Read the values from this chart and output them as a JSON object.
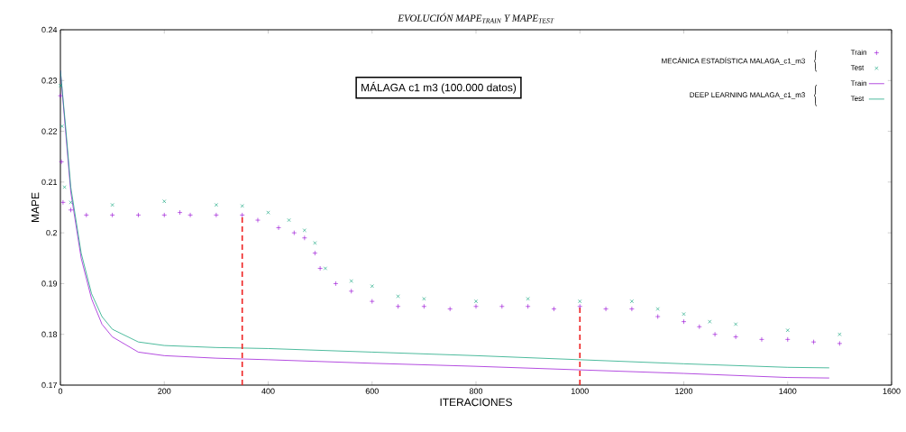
{
  "chart_data": {
    "type": "line",
    "title": "EVOLUCIÓN MAPE$_{TRAIN}$ Y MAPE$_{TEST}$",
    "xlabel": "ITERACIONES",
    "ylabel": "MAPE",
    "xlim": [
      0,
      1600
    ],
    "xticks": [
      0,
      200,
      400,
      600,
      800,
      1000,
      1200,
      1400,
      1600
    ],
    "ylim": [
      0.17,
      0.24
    ],
    "yticks": [
      0.17,
      0.18,
      0.19,
      0.2,
      0.21,
      0.22,
      0.23,
      0.24
    ],
    "grid": false,
    "legend": "top right",
    "annotations": [
      "MÁLAGA c1 m3 (100.000 datos)",
      "MECÁNICA ESTADÍSTICA MALAGA_c1_m3",
      "DEEP LEARNING MALAGA_c1_m3"
    ],
    "series": [
      {
        "name": "Train",
        "type": "scatter",
        "marker": "plus",
        "color": "#9400d3",
        "x": [
          0,
          2,
          5,
          20,
          50,
          100,
          150,
          200,
          230,
          250,
          300,
          350,
          380,
          420,
          450,
          470,
          490,
          500,
          530,
          560,
          600,
          650,
          700,
          750,
          800,
          850,
          900,
          950,
          1000,
          1050,
          1100,
          1150,
          1200,
          1230,
          1260,
          1300,
          1350,
          1400,
          1450,
          1500
        ],
        "values": [
          0.227,
          0.214,
          0.206,
          0.2045,
          0.2035,
          0.2035,
          0.2035,
          0.2035,
          0.204,
          0.2035,
          0.2035,
          0.2035,
          0.2025,
          0.201,
          0.2,
          0.199,
          0.196,
          0.193,
          0.19,
          0.1885,
          0.1865,
          0.1855,
          0.1855,
          0.185,
          0.1855,
          0.1855,
          0.1855,
          0.185,
          0.1855,
          0.185,
          0.185,
          0.1835,
          0.1825,
          0.1815,
          0.18,
          0.1795,
          0.179,
          0.179,
          0.1785,
          0.1782
        ]
      },
      {
        "name": "Test",
        "type": "scatter",
        "marker": "cross",
        "color": "#009e73",
        "x": [
          0,
          3,
          8,
          20,
          100,
          200,
          300,
          350,
          400,
          440,
          470,
          490,
          510,
          560,
          600,
          650,
          700,
          800,
          900,
          1000,
          1100,
          1150,
          1200,
          1250,
          1300,
          1400,
          1500
        ],
        "values": [
          0.229,
          0.221,
          0.209,
          0.206,
          0.2055,
          0.2062,
          0.2055,
          0.2053,
          0.204,
          0.2025,
          0.2005,
          0.198,
          0.193,
          0.1905,
          0.1895,
          0.1875,
          0.187,
          0.1865,
          0.187,
          0.1865,
          0.1865,
          0.185,
          0.184,
          0.1825,
          0.182,
          0.1808,
          0.18
        ]
      },
      {
        "name": "Train",
        "marker": "none",
        "color": "#9400d3",
        "x": [
          0,
          10,
          20,
          40,
          60,
          80,
          100,
          150,
          200,
          300,
          400,
          600,
          800,
          1000,
          1200,
          1400,
          1480
        ],
        "values": [
          0.232,
          0.22,
          0.208,
          0.195,
          0.187,
          0.182,
          0.1795,
          0.1765,
          0.1758,
          0.1753,
          0.175,
          0.1743,
          0.1737,
          0.173,
          0.1723,
          0.1715,
          0.1714
        ]
      },
      {
        "name": "Test",
        "marker": "none",
        "color": "#009e73",
        "x": [
          0,
          10,
          20,
          40,
          60,
          80,
          100,
          150,
          200,
          300,
          400,
          600,
          800,
          1000,
          1200,
          1400,
          1480
        ],
        "values": [
          0.232,
          0.221,
          0.209,
          0.196,
          0.188,
          0.1835,
          0.181,
          0.1785,
          0.1778,
          0.1774,
          0.1772,
          0.1765,
          0.1758,
          0.175,
          0.1742,
          0.1735,
          0.1734
        ]
      },
      {
        "type": "line",
        "marker": "none",
        "line_style": "dashed",
        "color": "#ee2222",
        "x": [
          350,
          350
        ],
        "values": [
          0.17,
          0.2033
        ]
      },
      {
        "type": "line",
        "marker": "none",
        "line_style": "dashed",
        "color": "#ee2222",
        "x": [
          1000,
          1000
        ],
        "values": [
          0.17,
          0.1855
        ]
      }
    ]
  }
}
